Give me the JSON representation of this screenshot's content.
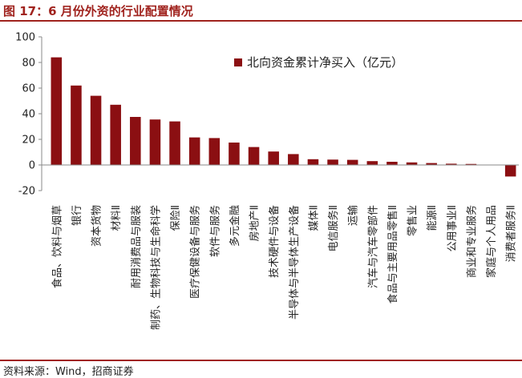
{
  "header": {
    "title": "图 17：6 月份外资的行业配置情况"
  },
  "footer": {
    "source": "资料来源：Wind，招商证券"
  },
  "colors": {
    "accent": "#a0231e",
    "bar": "#8b0f12",
    "text": "#222222"
  },
  "chart_data": {
    "type": "bar",
    "title": "",
    "xlabel": "",
    "ylabel": "",
    "ylim": [
      -20,
      100
    ],
    "yticks": [
      -20,
      0,
      20,
      40,
      60,
      80,
      100
    ],
    "grid": false,
    "legend_position": "top-right",
    "categories": [
      "食品、饮料与烟草",
      "银行",
      "资本货物",
      "材料Ⅱ",
      "耐用消费品与服装",
      "制药、生物科技与生命科学",
      "保险Ⅱ",
      "医疗保健设备与服务",
      "软件与服务",
      "多元金融",
      "房地产Ⅱ",
      "技术硬件与设备",
      "半导体与半导体生产设备",
      "媒体Ⅱ",
      "电信服务Ⅱ",
      "运输",
      "汽车与汽车零部件",
      "食品与主要用品零售Ⅱ",
      "零售业",
      "能源Ⅱ",
      "公用事业Ⅱ",
      "商业和专业服务",
      "家庭与个人用品",
      "消费者服务Ⅱ"
    ],
    "series": [
      {
        "name": "北向资金累计净买入（亿元）",
        "color": "#8b0f12",
        "values": [
          84,
          62,
          54,
          47,
          37.5,
          35.5,
          34,
          21.5,
          21,
          17.5,
          14,
          10.5,
          8.5,
          4.5,
          4.2,
          4,
          3,
          2.5,
          2,
          1.5,
          1,
          0.8,
          0.2,
          -9
        ]
      }
    ]
  }
}
